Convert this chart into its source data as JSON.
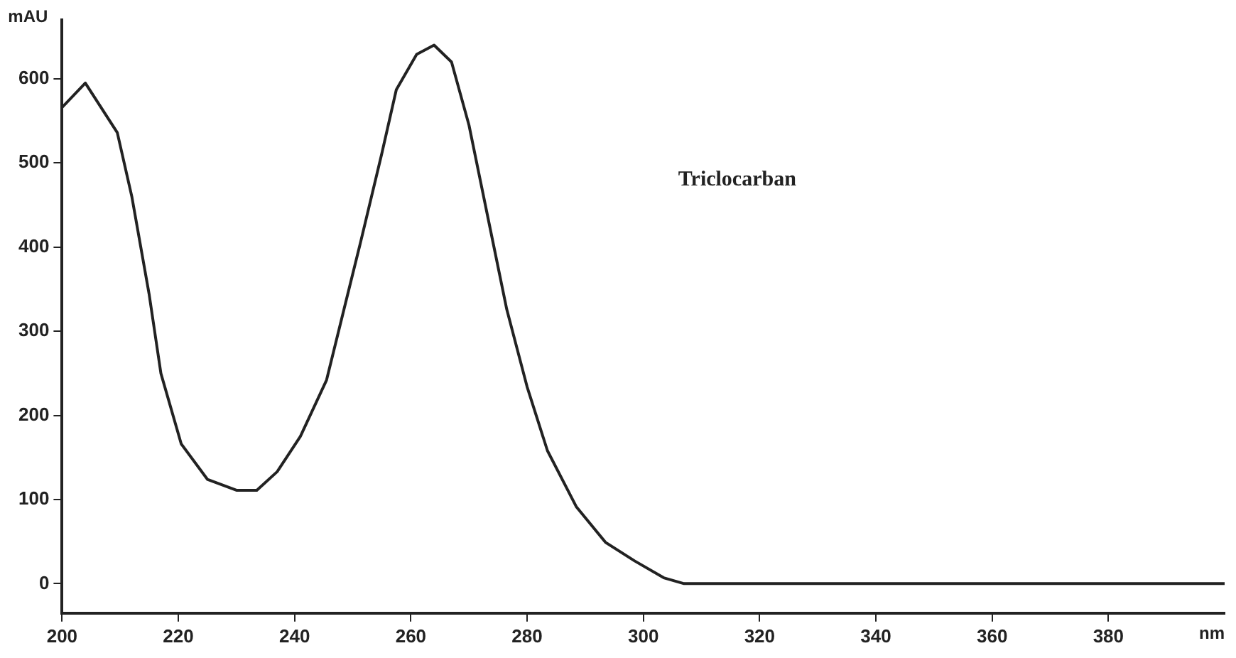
{
  "chart_data": {
    "type": "line",
    "xlabel": "nm",
    "ylabel": "mAU",
    "annotations": [
      "Triclocarban"
    ],
    "x": [
      200,
      204,
      209.5,
      212,
      215,
      217,
      220.5,
      225,
      230,
      233.5,
      237,
      241,
      245.5,
      248.5,
      251.5,
      255,
      257.5,
      261,
      264,
      267,
      270,
      273.5,
      276.5,
      280,
      283.5,
      288.5,
      293.5,
      298.5,
      303.5,
      307,
      400
    ],
    "series": [
      {
        "color": "#222222",
        "values": [
          566,
          595,
          536,
          460,
          343,
          250,
          166,
          124,
          111,
          111,
          133,
          175,
          242,
          326,
          410,
          511,
          587,
          629,
          640,
          620,
          545,
          427,
          326,
          234,
          158,
          91,
          49,
          27,
          7,
          0,
          0
        ]
      }
    ],
    "xlim": [
      200,
      400
    ],
    "xticks": [
      200,
      220,
      240,
      260,
      280,
      300,
      320,
      340,
      360,
      380
    ],
    "ylim": [
      -35,
      670
    ],
    "yticks": [
      0,
      100,
      200,
      300,
      400,
      500,
      600
    ],
    "grid": false,
    "legend": false,
    "marker": "none",
    "line_style": "solid"
  }
}
